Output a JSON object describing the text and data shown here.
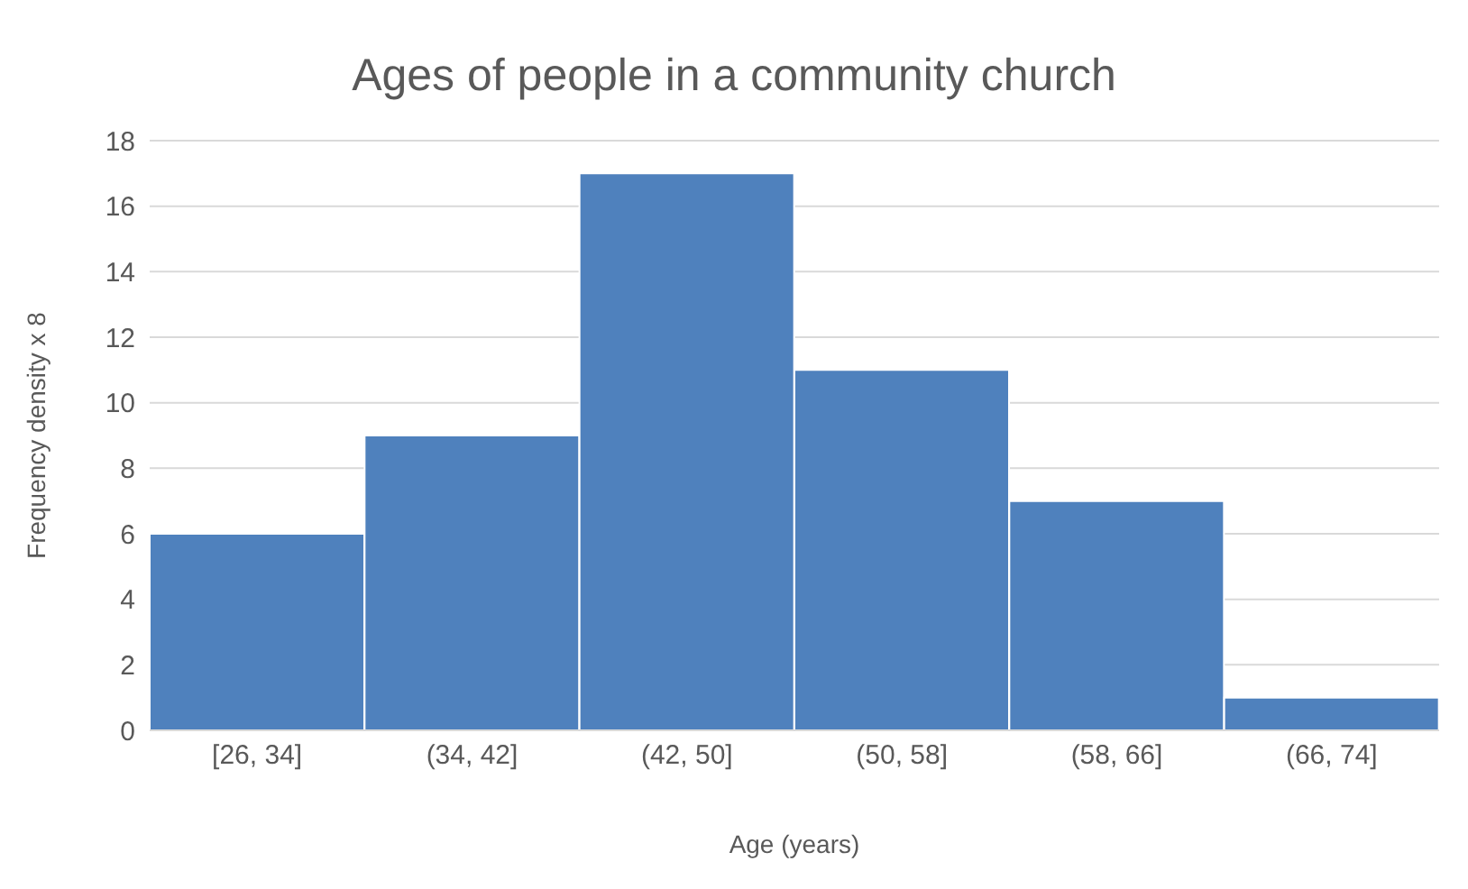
{
  "chart_data": {
    "type": "bar",
    "title": "Ages of people in a community church",
    "xlabel": "Age (years)",
    "ylabel": "Frequency density x 8",
    "categories": [
      "[26, 34]",
      "(34, 42]",
      "(42, 50]",
      "(50, 58]",
      "(58, 66]",
      "(66, 74]"
    ],
    "values": [
      6,
      9,
      17,
      11,
      7,
      1
    ],
    "color": "#4f81bd",
    "ylim": [
      0,
      18
    ],
    "yticks": [
      0,
      2,
      4,
      6,
      8,
      10,
      12,
      14,
      16,
      18
    ],
    "grid": "y"
  }
}
